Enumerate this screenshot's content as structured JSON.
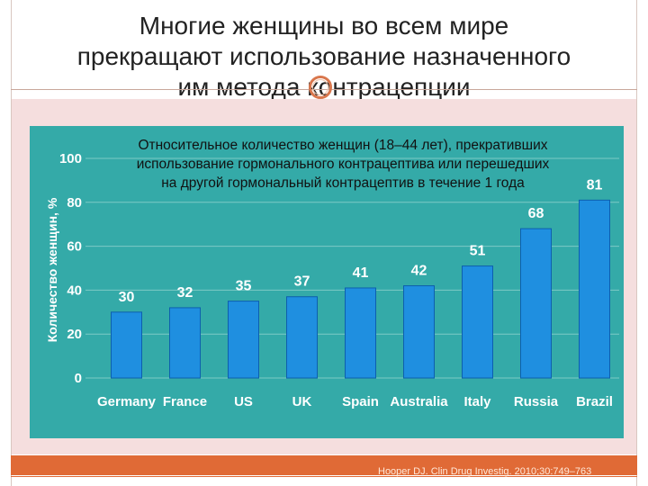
{
  "slide": {
    "title_lines": [
      "Многие женщины во всем мире",
      "прекращают использование назначенного",
      "им метода контрацепции"
    ],
    "citation": "Hooper DJ. Clin Drug Investig. 2010;30:749–763"
  },
  "chart_data": {
    "type": "bar",
    "title_lines": [
      "Относительное количество женщин (18–44 лет), прекративших",
      "использование гормонального контрацептива или перешедших",
      "на другой гормональный контрацептив в течение 1 года"
    ],
    "ylabel": "Количество женщин, %",
    "xlabel": "",
    "ylim": [
      0,
      100
    ],
    "yticks": [
      0,
      20,
      40,
      60,
      80,
      100
    ],
    "categories": [
      "Germany",
      "France",
      "US",
      "UK",
      "Spain",
      "Australia",
      "Italy",
      "Russia",
      "Brazil"
    ],
    "values": [
      30,
      32,
      35,
      37,
      41,
      42,
      51,
      68,
      81
    ],
    "grid": true,
    "legend": "none",
    "colors": {
      "bar": "#1f8fe0",
      "bar_edge": "#0d5fae",
      "panel": "#34aaa8",
      "grid": "#7cc9c5",
      "text": "#ffffff"
    }
  }
}
